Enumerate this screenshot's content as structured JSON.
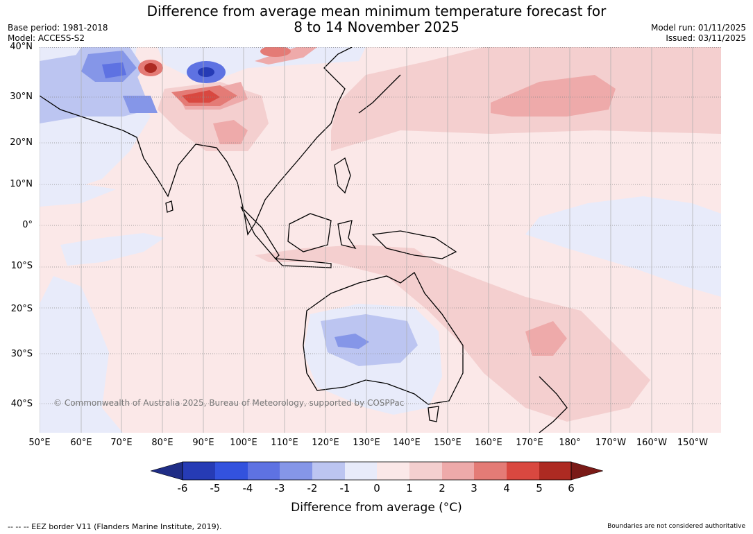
{
  "title_line1": "Difference from average mean minimum temperature forecast for",
  "title_line2": "8 to 14 November 2025",
  "base_period": "Base period: 1981-2018",
  "model": "Model: ACCESS-S2",
  "model_run": "Model run: 01/11/2025",
  "issued": "Issued: 03/11/2025",
  "copyright": "© Commonwealth of Australia 2025, Bureau of Meteorology, supported by COSPPac",
  "lat_labels": [
    "40°N",
    "30°N",
    "20°N",
    "10°N",
    "0°",
    "10°S",
    "20°S",
    "30°S",
    "40°S"
  ],
  "lon_labels": [
    "50°E",
    "60°E",
    "70°E",
    "80°E",
    "90°E",
    "100°E",
    "110°E",
    "120°E",
    "130°E",
    "140°E",
    "150°E",
    "160°E",
    "170°E",
    "180°",
    "170°W",
    "160°W",
    "150°W"
  ],
  "colorbar": {
    "label": "Difference from average (°C)",
    "ticks": [
      "-6",
      "-5",
      "-4",
      "-3",
      "-2",
      "-1",
      "0",
      "1",
      "2",
      "3",
      "4",
      "5",
      "6"
    ],
    "colors": [
      "#1f2d86",
      "#263bb5",
      "#3352de",
      "#5e72e2",
      "#8596e8",
      "#bcc5f1",
      "#e8ebfa",
      "#fbe8e8",
      "#f4cfcf",
      "#eeaaaa",
      "#e47b76",
      "#d94840",
      "#ad2a22",
      "#7a1a17"
    ]
  },
  "eez_note": "--  --  -- EEZ border V11 (Flanders Marine Institute, 2019).",
  "boundary_note": "Boundaries are not considered authoritative"
}
